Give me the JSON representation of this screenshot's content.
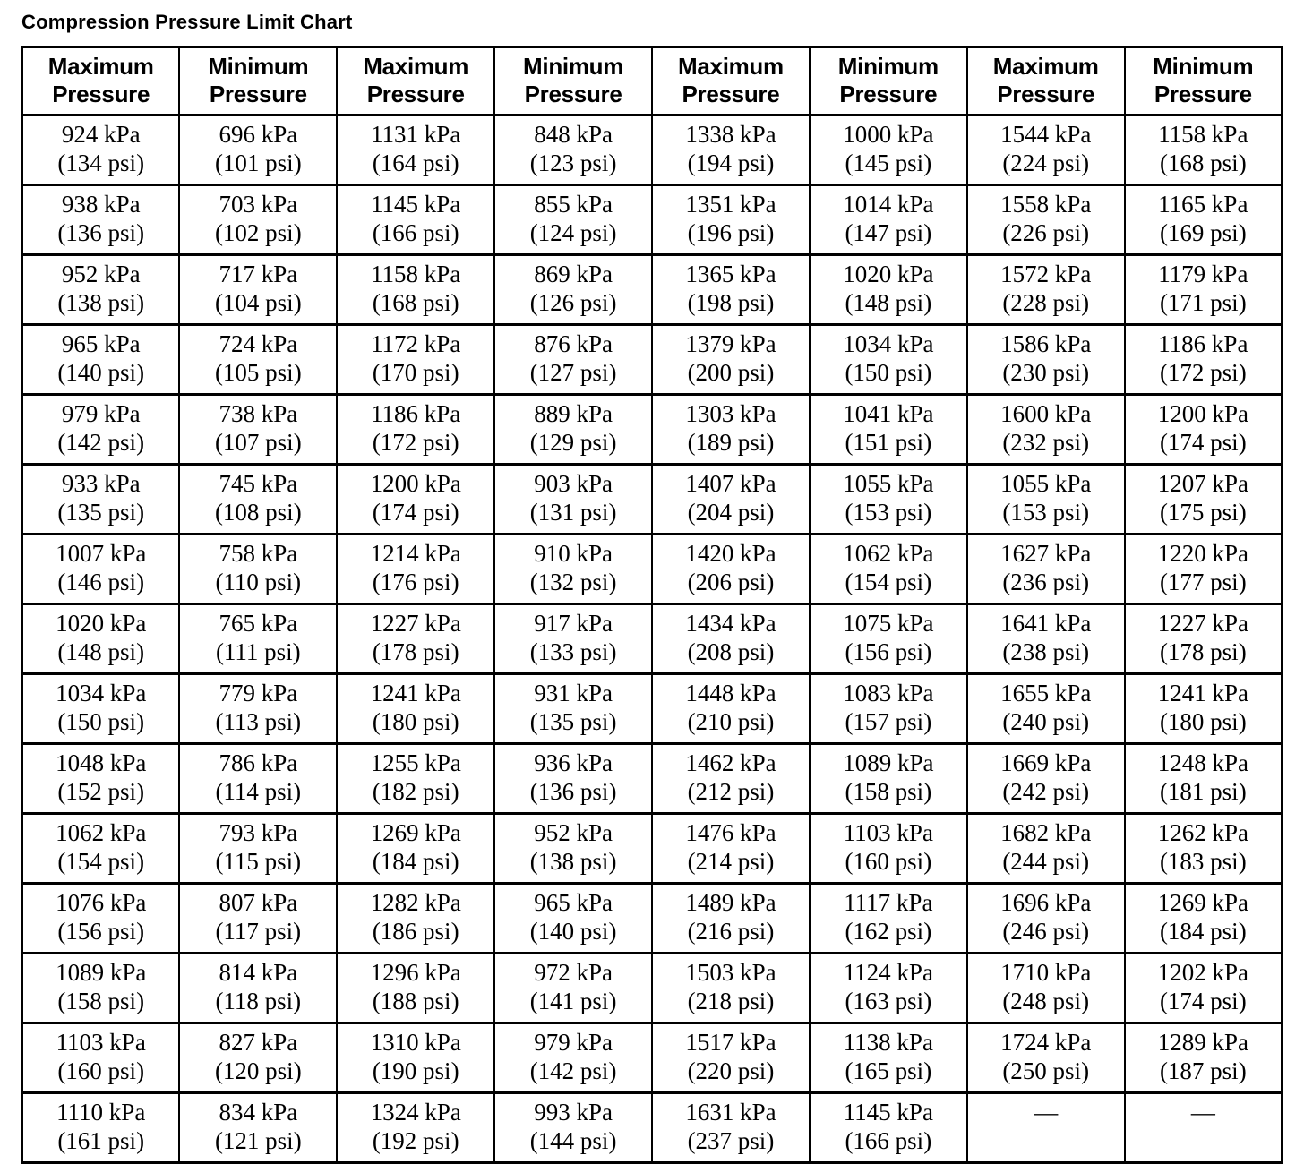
{
  "title": "Compression Pressure Limit Chart",
  "colors": {
    "text": "#000000",
    "background": "#ffffff",
    "border": "#000000"
  },
  "empty_cell_marker": "—",
  "table": {
    "headers": [
      "Maximum\nPressure",
      "Minimum\nPressure",
      "Maximum\nPressure",
      "Minimum\nPressure",
      "Maximum\nPressure",
      "Minimum\nPressure",
      "Maximum\nPressure",
      "Minimum\nPressure"
    ],
    "rows": [
      {
        "cells": [
          "924 kPa\n(134 psi)",
          "696 kPa\n(101 psi)",
          "1131 kPa\n(164 psi)",
          "848 kPa\n(123 psi)",
          "1338 kPa\n(194 psi)",
          "1000 kPa\n(145 psi)",
          "1544 kPa\n(224 psi)",
          "1158 kPa\n(168 psi)"
        ]
      },
      {
        "cells": [
          "938 kPa\n(136 psi)",
          "703 kPa\n(102 psi)",
          "1145 kPa\n(166 psi)",
          "855 kPa\n(124 psi)",
          "1351 kPa\n(196 psi)",
          "1014 kPa\n(147 psi)",
          "1558 kPa\n(226 psi)",
          "1165 kPa\n(169 psi)"
        ]
      },
      {
        "cells": [
          "952 kPa\n(138 psi)",
          "717 kPa\n(104 psi)",
          "1158 kPa\n(168 psi)",
          "869 kPa\n(126 psi)",
          "1365 kPa\n(198 psi)",
          "1020 kPa\n(148 psi)",
          "1572 kPa\n(228 psi)",
          "1179 kPa\n(171 psi)"
        ]
      },
      {
        "cells": [
          "965 kPa\n(140 psi)",
          "724 kPa\n(105 psi)",
          "1172 kPa\n(170 psi)",
          "876 kPa\n(127 psi)",
          "1379 kPa\n(200 psi)",
          "1034 kPa\n(150 psi)",
          "1586 kPa\n(230 psi)",
          "1186 kPa\n(172 psi)"
        ]
      },
      {
        "cells": [
          "979 kPa\n(142 psi)",
          "738 kPa\n(107 psi)",
          "1186 kPa\n(172 psi)",
          "889 kPa\n(129 psi)",
          "1303 kPa\n(189 psi)",
          "1041 kPa\n(151 psi)",
          "1600 kPa\n(232 psi)",
          "1200 kPa\n(174 psi)"
        ]
      },
      {
        "cells": [
          "933 kPa\n(135 psi)",
          "745 kPa\n(108 psi)",
          "1200 kPa\n(174 psi)",
          "903 kPa\n(131 psi)",
          "1407 kPa\n(204 psi)",
          "1055 kPa\n(153 psi)",
          "1055 kPa\n(153 psi)",
          "1207 kPa\n(175 psi)"
        ]
      },
      {
        "cells": [
          "1007 kPa\n(146 psi)",
          "758 kPa\n(110 psi)",
          "1214 kPa\n(176 psi)",
          "910 kPa\n(132 psi)",
          "1420 kPa\n(206 psi)",
          "1062 kPa\n(154 psi)",
          "1627 kPa\n(236 psi)",
          "1220 kPa\n(177 psi)"
        ]
      },
      {
        "cells": [
          "1020 kPa\n(148 psi)",
          "765 kPa\n(111 psi)",
          "1227 kPa\n(178 psi)",
          "917 kPa\n(133 psi)",
          "1434 kPa\n(208 psi)",
          "1075 kPa\n(156 psi)",
          "1641 kPa\n(238 psi)",
          "1227 kPa\n(178 psi)"
        ]
      },
      {
        "cells": [
          "1034 kPa\n(150 psi)",
          "779 kPa\n(113 psi)",
          "1241 kPa\n(180 psi)",
          "931 kPa\n(135 psi)",
          "1448 kPa\n(210 psi)",
          "1083 kPa\n(157 psi)",
          "1655 kPa\n(240 psi)",
          "1241 kPa\n(180 psi)"
        ]
      },
      {
        "cells": [
          "1048 kPa\n(152 psi)",
          "786 kPa\n(114 psi)",
          "1255 kPa\n(182 psi)",
          "936 kPa\n(136 psi)",
          "1462 kPa\n(212 psi)",
          "1089 kPa\n(158 psi)",
          "1669 kPa\n(242 psi)",
          "1248 kPa\n(181 psi)"
        ]
      },
      {
        "cells": [
          "1062 kPa\n(154 psi)",
          "793 kPa\n(115 psi)",
          "1269 kPa\n(184 psi)",
          "952 kPa\n(138 psi)",
          "1476 kPa\n(214 psi)",
          "1103 kPa\n(160 psi)",
          "1682 kPa\n(244 psi)",
          "1262 kPa\n(183 psi)"
        ]
      },
      {
        "cells": [
          "1076 kPa\n(156 psi)",
          "807 kPa\n(117 psi)",
          "1282 kPa\n(186 psi)",
          "965 kPa\n(140 psi)",
          "1489 kPa\n(216 psi)",
          "1117 kPa\n(162 psi)",
          "1696 kPa\n(246 psi)",
          "1269 kPa\n(184 psi)"
        ]
      },
      {
        "cells": [
          "1089 kPa\n(158 psi)",
          "814 kPa\n(118 psi)",
          "1296 kPa\n(188 psi)",
          "972 kPa\n(141 psi)",
          "1503 kPa\n(218 psi)",
          "1124 kPa\n(163 psi)",
          "1710 kPa\n(248 psi)",
          "1202 kPa\n(174 psi)"
        ]
      },
      {
        "cells": [
          "1103 kPa\n(160 psi)",
          "827 kPa\n(120 psi)",
          "1310 kPa\n(190 psi)",
          "979 kPa\n(142 psi)",
          "1517 kPa\n(220 psi)",
          "1138 kPa\n(165 psi)",
          "1724 kPa\n(250 psi)",
          "1289 kPa\n(187 psi)"
        ]
      },
      {
        "cells": [
          "1110 kPa\n(161 psi)",
          "834 kPa\n(121 psi)",
          "1324 kPa\n(192 psi)",
          "993 kPa\n(144 psi)",
          "1631 kPa\n(237 psi)",
          "1145 kPa\n(166 psi)",
          "—",
          "—"
        ]
      }
    ]
  }
}
